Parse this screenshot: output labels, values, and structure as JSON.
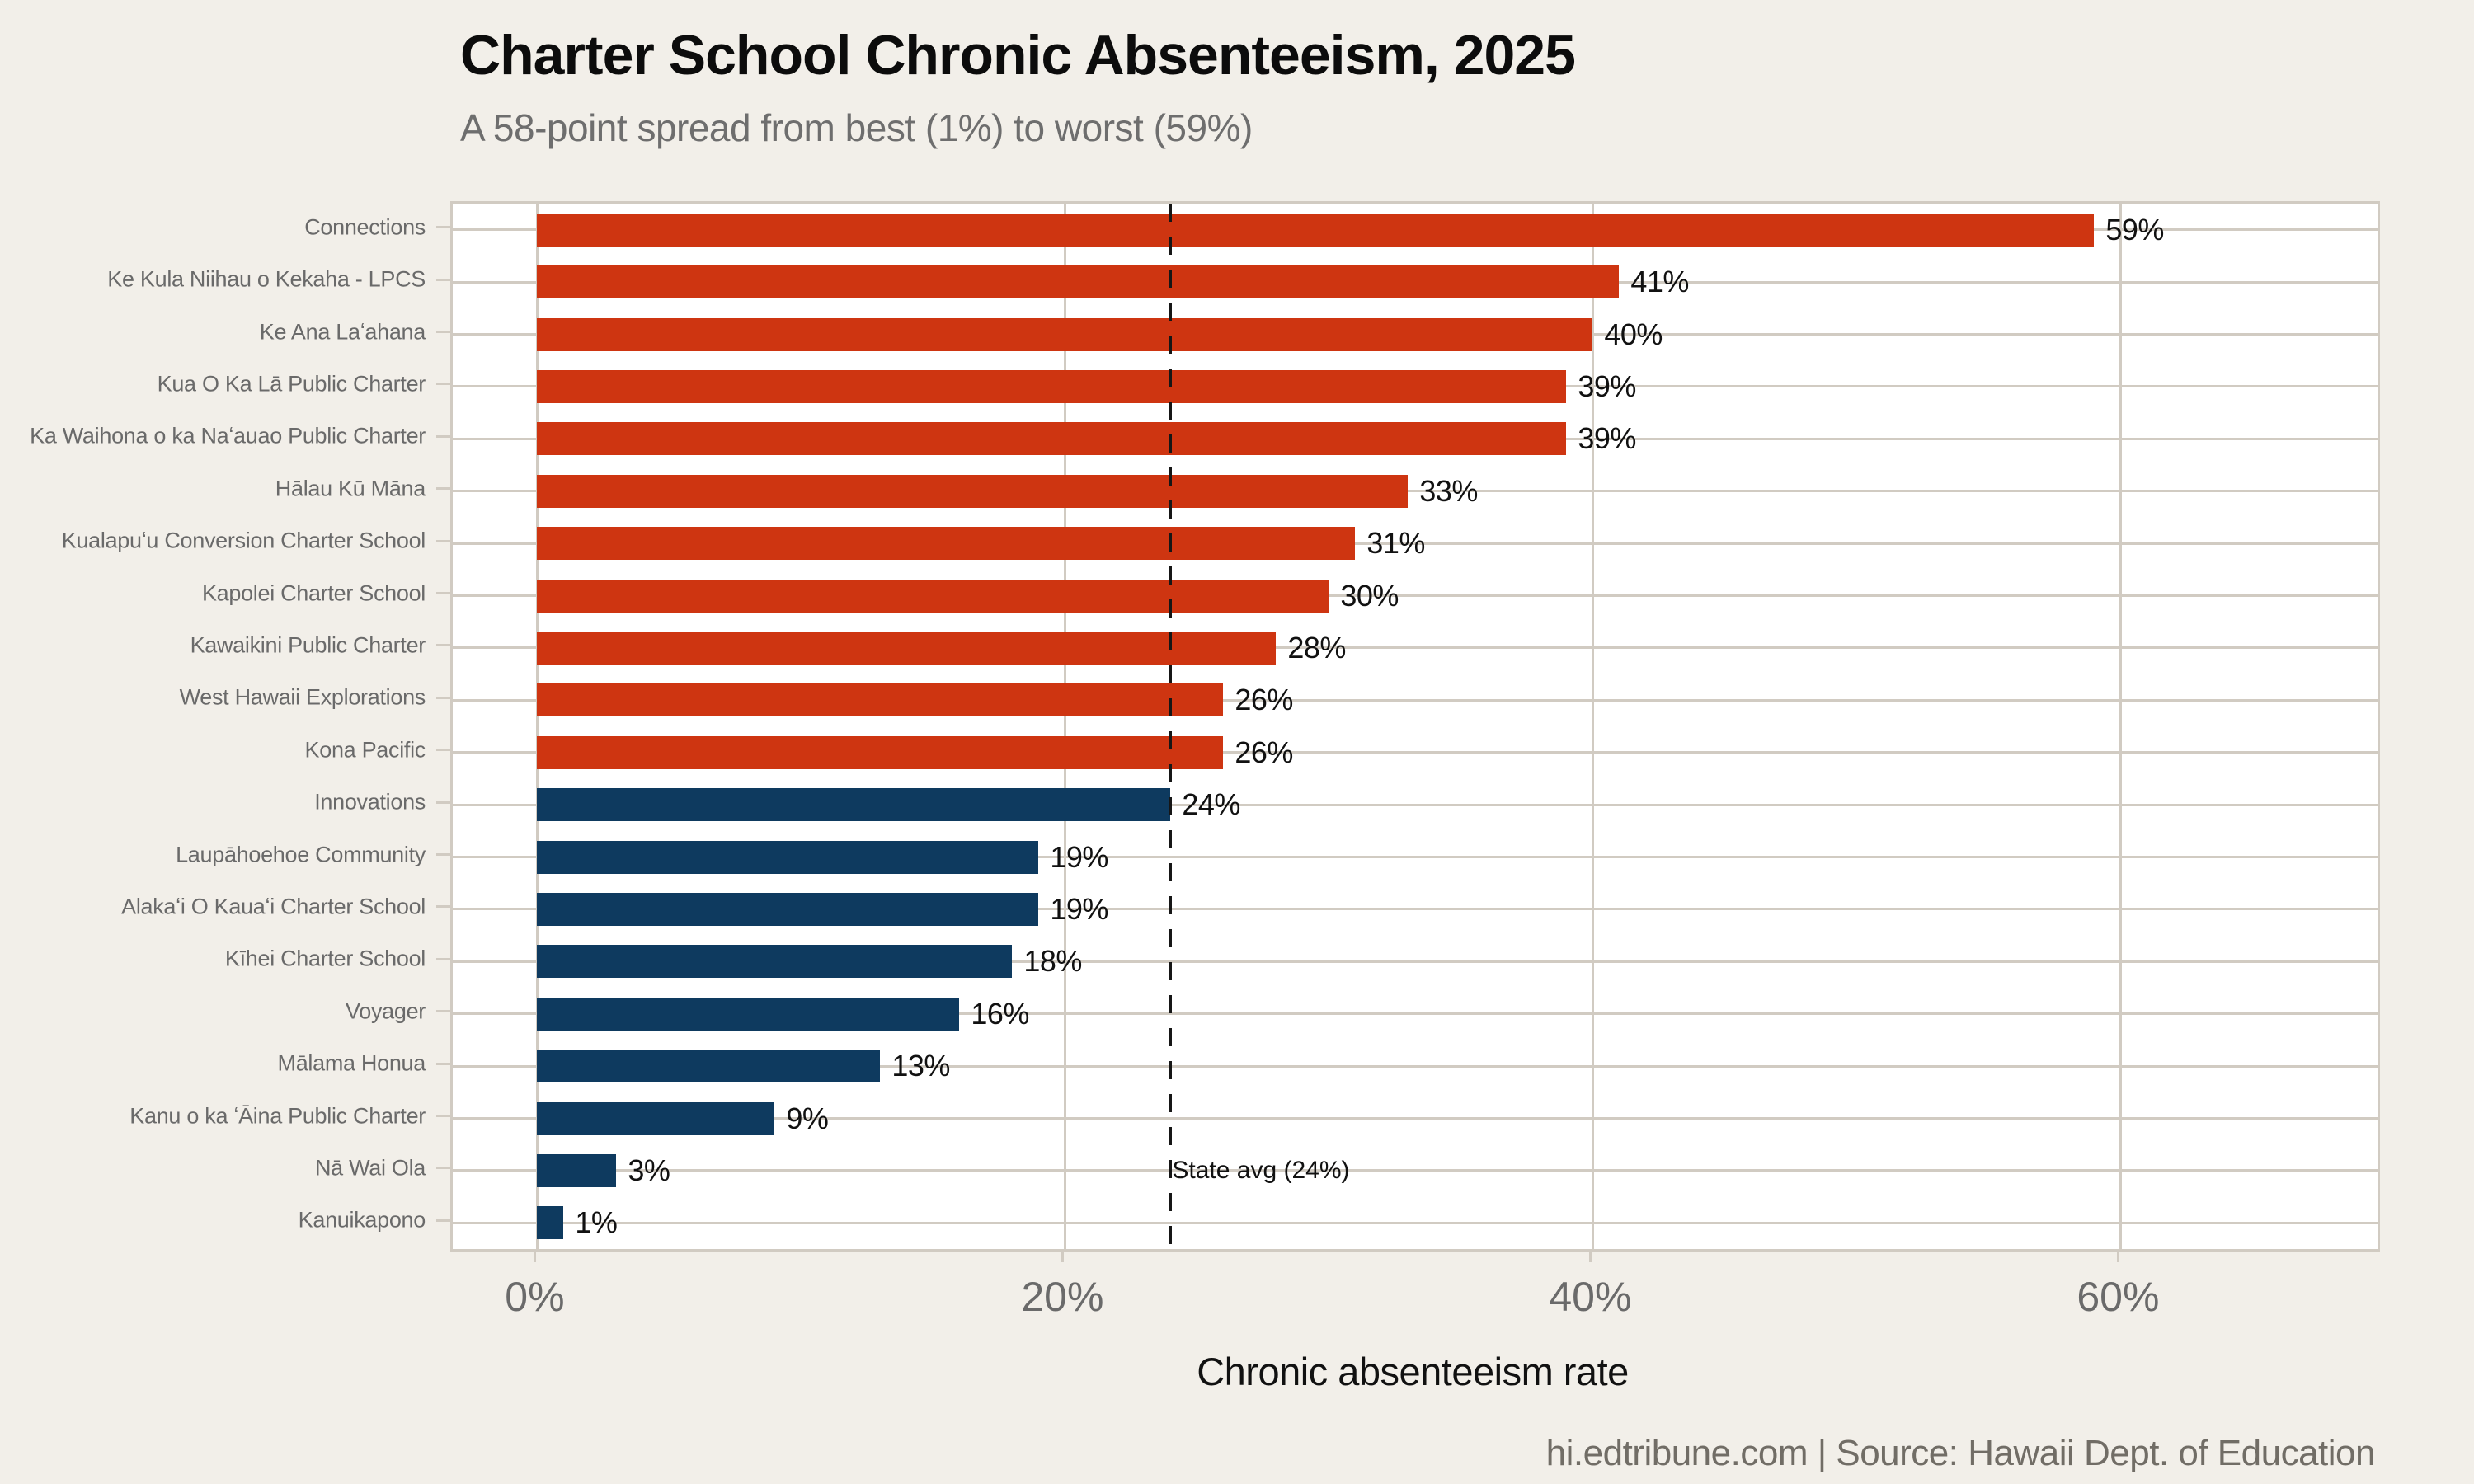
{
  "header": {
    "title": "Charter School Chronic Absenteeism, 2025",
    "subtitle": "A 58-point spread from best (1%) to worst (59%)"
  },
  "footer": {
    "credit": "hi.edtribune.com | Source: Hawaii Dept. of Education"
  },
  "chart_data": {
    "type": "bar",
    "orientation": "horizontal",
    "title": "Charter School Chronic Absenteeism, 2025",
    "subtitle": "A 58-point spread from best (1%) to worst (59%)",
    "xlabel": "Chronic absenteeism rate",
    "ylabel": "",
    "categories": [
      "Connections",
      "Ke Kula Niihau o Kekaha - LPCS",
      "Ke Ana Laʻahana",
      "Kua O Ka Lā Public Charter",
      "Ka Waihona o ka Naʻauao Public Charter",
      "Hālau Kū Māna",
      "Kualapuʻu Conversion Charter School",
      "Kapolei Charter School",
      "Kawaikini Public Charter",
      "West Hawaii Explorations",
      "Kona Pacific",
      "Innovations",
      "Laupāhoehoe Community",
      "Alakaʻi O Kauaʻi Charter School",
      "Kīhei Charter School",
      "Voyager",
      "Mālama Honua",
      "Kanu o ka ʻĀina Public Charter",
      "Nā Wai Ola",
      "Kanuikapono"
    ],
    "values": [
      59,
      41,
      40,
      39,
      39,
      33,
      31,
      30,
      28,
      26,
      26,
      24,
      19,
      19,
      18,
      16,
      13,
      9,
      3,
      1
    ],
    "value_labels": [
      "59%",
      "41%",
      "40%",
      "39%",
      "39%",
      "33%",
      "31%",
      "30%",
      "28%",
      "26%",
      "26%",
      "24%",
      "19%",
      "19%",
      "18%",
      "16%",
      "13%",
      "9%",
      "3%",
      "1%"
    ],
    "bar_colors": [
      "#CE3511",
      "#CE3511",
      "#CE3511",
      "#CE3511",
      "#CE3511",
      "#CE3511",
      "#CE3511",
      "#CE3511",
      "#CE3511",
      "#CE3511",
      "#CE3511",
      "#0E3A5F",
      "#0E3A5F",
      "#0E3A5F",
      "#0E3A5F",
      "#0E3A5F",
      "#0E3A5F",
      "#0E3A5F",
      "#0E3A5F",
      "#0E3A5F"
    ],
    "color_legend": {
      "above_state_avg": "#CE3511",
      "at_or_below_state_avg": "#0E3A5F"
    },
    "x_ticks": [
      {
        "value": 0,
        "label": "0%"
      },
      {
        "value": 20,
        "label": "20%"
      },
      {
        "value": 40,
        "label": "40%"
      },
      {
        "value": 60,
        "label": "60%"
      }
    ],
    "xlim": [
      -3.2,
      69.8
    ],
    "grid": true,
    "legend_position": "none",
    "annotation": {
      "label": "State avg (24%)",
      "value": 24,
      "row_anchor": "Nā Wai Ola"
    }
  },
  "style_colors": {
    "background": "#F2EFE9",
    "plot_background": "#FFFFFF",
    "gridline": "#D1CBC2",
    "annotation_line": "#161616",
    "text_dark": "#111111",
    "text_gray": "#6a6a6a"
  }
}
